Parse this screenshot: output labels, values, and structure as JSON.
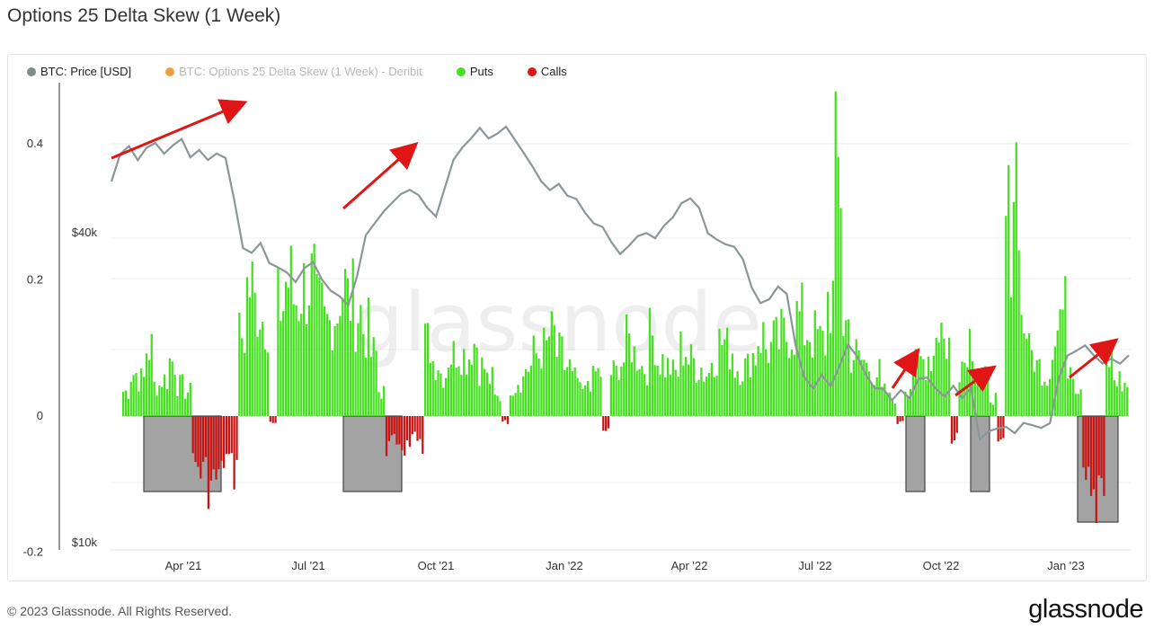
{
  "title": "Options 25 Delta Skew (1 Week)",
  "legend": [
    {
      "label": "BTC: Price [USD]",
      "color": "#7f8c8d",
      "muted": false
    },
    {
      "label": "BTC: Options 25 Delta Skew (1 Week) - Deribit",
      "color": "#f39c45",
      "muted": true
    },
    {
      "label": "Puts",
      "color": "#46e021",
      "muted": false
    },
    {
      "label": "Calls",
      "color": "#e01212",
      "muted": false
    }
  ],
  "footer": "© 2023 Glassnode. All Rights Reserved.",
  "brand": "glassnode",
  "watermark": "glassnode",
  "chart_data": {
    "type": "bar",
    "x_ticks": [
      "Apr '21",
      "Jul '21",
      "Oct '21",
      "Jan '22",
      "Apr '22",
      "Jul '22",
      "Oct '22",
      "Jan '23"
    ],
    "y_left_ticks": [
      "0.4",
      "0.2",
      "0",
      "-0.2"
    ],
    "y_left_ticks_values": [
      0.4,
      0.2,
      0,
      -0.2
    ],
    "y_right_ticks": [
      "$40k",
      "$10k"
    ],
    "ylim": [
      -0.21,
      0.48
    ],
    "skew_weekly": [
      0.04,
      0.07,
      0.06,
      0.11,
      0.05,
      0.06,
      0.09,
      0.05,
      0.04,
      -0.08,
      -0.09,
      -0.11,
      -0.1,
      -0.07,
      -0.09,
      0.13,
      0.21,
      0.18,
      0.16,
      -0.01,
      0.18,
      0.22,
      0.19,
      0.21,
      0.22,
      0.17,
      0.15,
      0.17,
      0.21,
      0.19,
      0.17,
      0.14,
      0.1,
      0.04,
      -0.05,
      -0.04,
      -0.05,
      -0.04,
      -0.06,
      0.12,
      0.09,
      0.07,
      0.1,
      0.11,
      0.1,
      0.12,
      0.08,
      0.06,
      0.03,
      -0.01,
      0.05,
      0.06,
      0.08,
      0.1,
      0.11,
      0.13,
      0.1,
      0.08,
      0.06,
      0.04,
      0.06,
      0.07,
      -0.02,
      0.07,
      0.09,
      0.12,
      0.1,
      0.08,
      0.13,
      0.09,
      0.08,
      0.07,
      0.11,
      0.09,
      0.08,
      0.07,
      0.1,
      0.12,
      0.11,
      0.08,
      0.08,
      0.1,
      0.13,
      0.11,
      0.12,
      0.13,
      0.14,
      0.16,
      0.14,
      0.13,
      0.12,
      0.19,
      0.39,
      0.15,
      0.1,
      0.09,
      0.08,
      0.07,
      0.04,
      0.03,
      -0.01,
      0.05,
      0.08,
      0.09,
      0.1,
      0.15,
      0.12,
      -0.04,
      0.09,
      0.13,
      0.08,
      0.06,
      0.03,
      -0.03,
      0.31,
      0.41,
      0.15,
      0.1,
      0.08,
      0.07,
      0.14,
      0.17,
      0.09,
      0.05,
      -0.12,
      -0.14,
      -0.1,
      0.09,
      0.06,
      0.05
    ],
    "price_weekly_usd": [
      50000,
      57000,
      58000,
      55000,
      58000,
      59000,
      57000,
      59000,
      60000,
      56000,
      57000,
      55000,
      57000,
      55000,
      46000,
      37000,
      36000,
      38000,
      35000,
      34000,
      33000,
      32000,
      34000,
      35000,
      32000,
      31000,
      30000,
      29000,
      33000,
      39000,
      42000,
      44000,
      46000,
      47000,
      48000,
      47000,
      45000,
      43000,
      49000,
      55000,
      58000,
      61000,
      63000,
      61000,
      62000,
      64000,
      60000,
      57000,
      53000,
      50000,
      48000,
      49000,
      47000,
      46000,
      43000,
      42000,
      41000,
      38000,
      36000,
      38000,
      39000,
      40000,
      39000,
      41000,
      43000,
      45000,
      46000,
      44000,
      40000,
      39000,
      38000,
      37000,
      35000,
      31000,
      29000,
      30000,
      31000,
      30000,
      24000,
      21000,
      20000,
      21000,
      20000,
      22000,
      24000,
      23000,
      21000,
      20000,
      20000,
      19000,
      20000,
      19000,
      21000,
      21000,
      20000,
      19000,
      20000,
      19000,
      20000,
      16000,
      16500,
      16800,
      17000,
      16500,
      17000,
      16800,
      16800,
      17000,
      21000,
      23000,
      23500,
      24000,
      23000,
      22500,
      23000,
      22000,
      23000
    ],
    "call_highlight_regions": [
      [
        "Feb '21",
        "May '21"
      ],
      [
        "Aug '21",
        "Sep '21"
      ],
      [
        "Sep '22",
        "Sep '22"
      ],
      [
        "Nov '22",
        "Nov '22"
      ],
      [
        "Dec '22",
        "Feb '23"
      ]
    ]
  }
}
